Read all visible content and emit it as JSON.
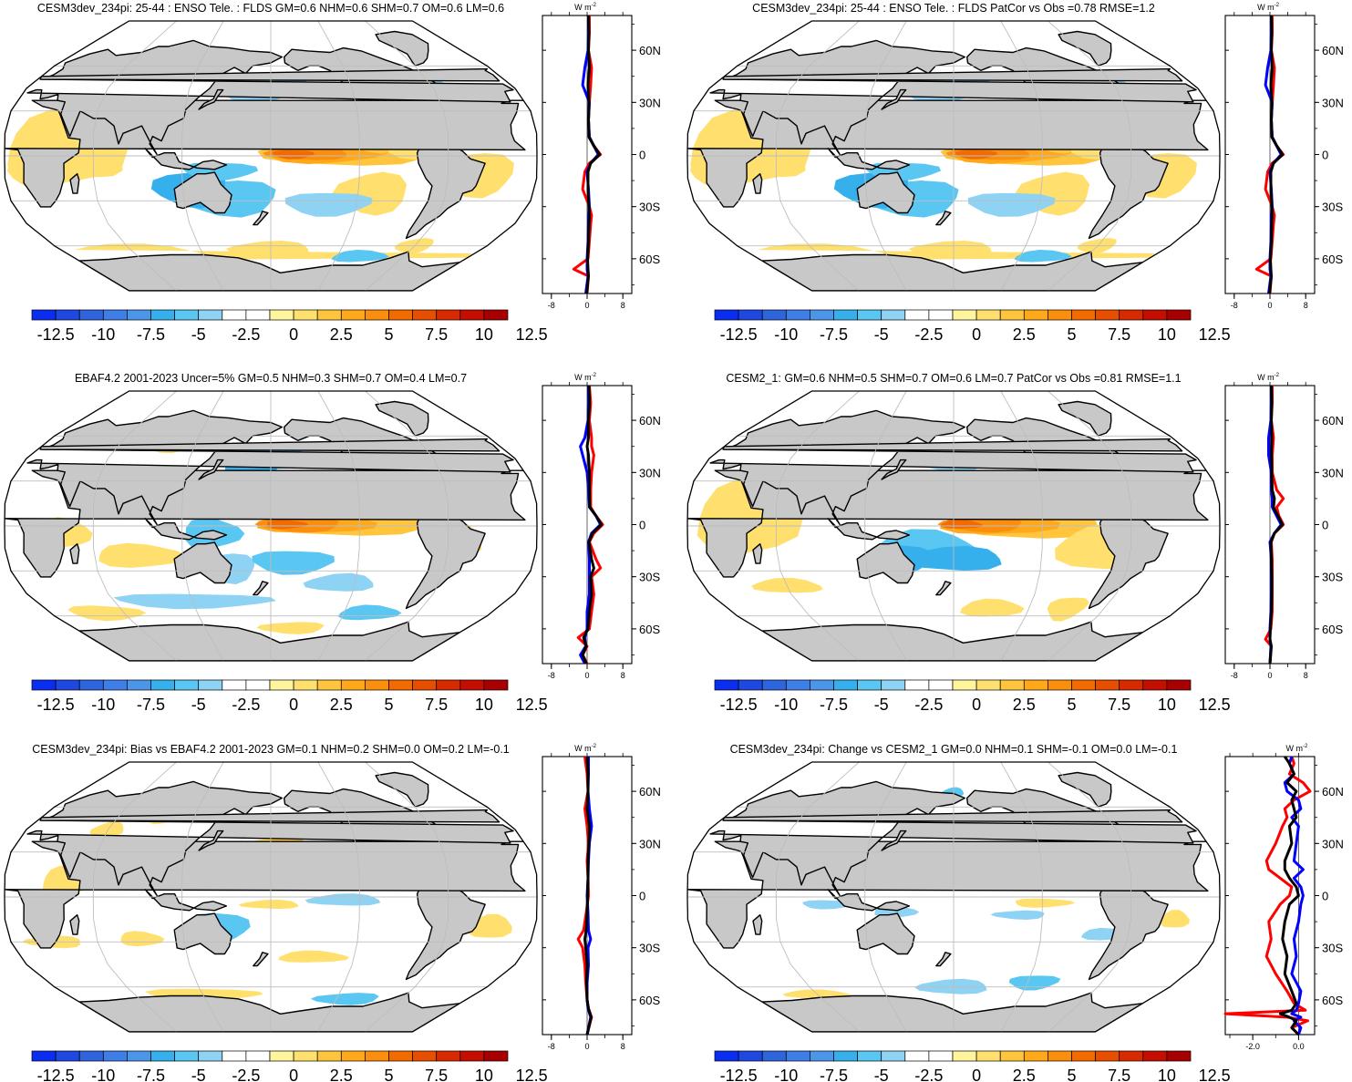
{
  "figure": {
    "variable": "FLDS",
    "units_label": "W m",
    "units_exponent": "-2",
    "colorbar": {
      "tick_labels": [
        "-12.5",
        "-10",
        "-7.5",
        "-5",
        "-2.5",
        "0",
        "2.5",
        "5",
        "7.5",
        "10",
        "12.5"
      ],
      "colors": [
        "#0a2ef0",
        "#1e48e0",
        "#2e64dc",
        "#3e7ee6",
        "#4c96ea",
        "#35b0ec",
        "#5ac6f2",
        "#8ed2f4",
        "#ffffff",
        "#ffffff",
        "#fff59c",
        "#ffe06e",
        "#ffc53c",
        "#ffa91a",
        "#fb8e0c",
        "#f36b00",
        "#e84e00",
        "#d82a00",
        "#c40f00",
        "#a80000"
      ]
    },
    "colors": {
      "red_line": "#ff0000",
      "blue_line": "#0000ff",
      "black_line": "#000000",
      "land": "#c8c8c8",
      "grid": "#bdbdbd"
    },
    "lat_labels": [
      "60N",
      "30N",
      "0",
      "30S",
      "60S"
    ]
  },
  "chart_data": [
    {
      "type": "heatmap",
      "title": "CESM3dev_234pi: 25-44 : ENSO Tele. : FLDS GM=0.6 NHM=0.6 SHM=0.7 OM=0.6 LM=0.6",
      "pattern": "model",
      "zonal_profile": {
        "x_tick_labels": [
          "-8",
          "0",
          "8"
        ],
        "xlim": [
          -10,
          10
        ],
        "ylim": [
          -80,
          80
        ],
        "lat": [
          -80,
          -70,
          -66,
          -60,
          -50,
          -40,
          -35,
          -30,
          -20,
          -10,
          -5,
          0,
          5,
          10,
          20,
          30,
          40,
          50,
          60,
          70,
          80
        ],
        "series": [
          {
            "name": "red",
            "values": [
              0.0,
              0.3,
              -3.0,
              0.2,
              0.5,
              0.8,
              1.0,
              0.5,
              -1.0,
              -0.5,
              0.5,
              3.0,
              1.5,
              0.5,
              0.3,
              0.5,
              0.8,
              1.0,
              0.3,
              0.5,
              0.5
            ]
          },
          {
            "name": "blue",
            "values": [
              -0.3,
              0.2,
              0.0,
              0.0,
              0.2,
              0.3,
              0.3,
              0.5,
              0.3,
              0.0,
              0.8,
              2.5,
              1.5,
              0.5,
              0.3,
              0.5,
              -1.0,
              -0.5,
              0.2,
              0.3,
              0.3
            ]
          },
          {
            "name": "black",
            "values": [
              -0.1,
              0.3,
              0.2,
              0.1,
              0.3,
              0.4,
              0.5,
              0.4,
              0.2,
              0.2,
              0.8,
              2.8,
              1.5,
              0.4,
              0.3,
              0.4,
              0.2,
              0.5,
              0.3,
              0.4,
              0.3
            ]
          }
        ]
      }
    },
    {
      "type": "heatmap",
      "title": "CESM3dev_234pi: 25-44 : ENSO Tele. : FLDS PatCor vs Obs =0.78 RMSE=1.2",
      "pattern": "model",
      "zonal_profile": {
        "x_tick_labels": [
          "-8",
          "0",
          "8"
        ],
        "xlim": [
          -10,
          10
        ],
        "ylim": [
          -80,
          80
        ],
        "lat": [
          -80,
          -70,
          -66,
          -60,
          -50,
          -40,
          -35,
          -30,
          -20,
          -10,
          -5,
          0,
          5,
          10,
          20,
          30,
          40,
          50,
          60,
          70,
          80
        ],
        "series": [
          {
            "name": "red",
            "values": [
              0.0,
              0.3,
              -3.0,
              0.2,
              0.5,
              0.8,
              1.0,
              0.5,
              -1.0,
              -0.5,
              0.5,
              3.0,
              1.5,
              0.5,
              0.3,
              0.5,
              0.8,
              1.0,
              0.3,
              0.5,
              0.5
            ]
          },
          {
            "name": "blue",
            "values": [
              -0.3,
              0.2,
              0.0,
              0.0,
              0.2,
              0.3,
              0.3,
              0.5,
              0.3,
              0.0,
              0.8,
              2.5,
              1.5,
              0.5,
              0.3,
              0.5,
              -1.0,
              -0.5,
              0.2,
              0.3,
              0.3
            ]
          },
          {
            "name": "black",
            "values": [
              -0.1,
              0.3,
              0.2,
              0.1,
              0.3,
              0.4,
              0.5,
              0.4,
              0.2,
              0.2,
              0.8,
              2.8,
              1.5,
              0.4,
              0.3,
              0.4,
              0.2,
              0.5,
              0.3,
              0.4,
              0.3
            ]
          }
        ]
      }
    },
    {
      "type": "heatmap",
      "title": "EBAF4.2 2001-2023 Uncer=5% GM=0.5 NHM=0.3 SHM=0.7 OM=0.4 LM=0.7",
      "pattern": "obs",
      "zonal_profile": {
        "x_tick_labels": [
          "-8",
          "0",
          "8"
        ],
        "xlim": [
          -10,
          10
        ],
        "ylim": [
          -80,
          80
        ],
        "lat": [
          -80,
          -75,
          -70,
          -65,
          -60,
          -50,
          -40,
          -30,
          -25,
          -20,
          -10,
          -5,
          0,
          5,
          10,
          20,
          30,
          40,
          45,
          50,
          60,
          70,
          80
        ],
        "series": [
          {
            "name": "red",
            "values": [
              0.0,
              -1.0,
              0.0,
              -2.0,
              0.5,
              1.0,
              1.5,
              1.0,
              3.0,
              2.0,
              0.5,
              1.5,
              3.5,
              2.0,
              0.8,
              0.8,
              1.0,
              1.5,
              1.0,
              1.0,
              0.5,
              0.8,
              0.5
            ]
          },
          {
            "name": "blue",
            "values": [
              -0.5,
              -1.5,
              -0.3,
              -0.5,
              0.0,
              0.0,
              0.5,
              0.5,
              0.5,
              0.5,
              0.3,
              1.0,
              3.0,
              2.0,
              0.5,
              0.3,
              0.0,
              -1.0,
              -1.5,
              -0.5,
              0.2,
              0.3,
              0.3
            ]
          },
          {
            "name": "black",
            "values": [
              -0.2,
              -1.0,
              -0.2,
              -0.8,
              0.2,
              0.5,
              1.0,
              0.8,
              1.5,
              1.0,
              0.4,
              1.2,
              3.2,
              2.0,
              0.6,
              0.5,
              0.5,
              0.3,
              0.0,
              0.3,
              0.3,
              0.5,
              0.4
            ]
          }
        ]
      }
    },
    {
      "type": "heatmap",
      "title": "CESM2_1: GM=0.6 NHM=0.5 SHM=0.7 OM=0.6 LM=0.7 PatCor vs Obs =0.81 RMSE=1.1",
      "pattern": "cesm2",
      "zonal_profile": {
        "x_tick_labels": [
          "-8",
          "0",
          "8"
        ],
        "xlim": [
          -10,
          10
        ],
        "ylim": [
          -80,
          80
        ],
        "lat": [
          -80,
          -70,
          -66,
          -60,
          -50,
          -40,
          -30,
          -20,
          -10,
          -5,
          0,
          5,
          10,
          15,
          20,
          30,
          40,
          50,
          60,
          70,
          80
        ],
        "series": [
          {
            "name": "red",
            "values": [
              0.0,
              0.3,
              -1.0,
              0.2,
              0.5,
              0.5,
              0.5,
              0.5,
              0.3,
              1.0,
              3.0,
              2.0,
              1.5,
              3.0,
              1.5,
              0.5,
              0.5,
              0.8,
              0.3,
              0.5,
              0.5
            ]
          },
          {
            "name": "blue",
            "values": [
              0.0,
              0.2,
              0.0,
              0.0,
              0.2,
              0.3,
              0.3,
              0.3,
              0.0,
              1.0,
              2.5,
              1.5,
              0.5,
              0.5,
              0.3,
              0.3,
              -0.3,
              -0.3,
              0.2,
              0.3,
              0.3
            ]
          },
          {
            "name": "black",
            "values": [
              0.0,
              0.3,
              0.0,
              0.1,
              0.3,
              0.4,
              0.4,
              0.3,
              0.2,
              1.0,
              2.8,
              1.8,
              0.8,
              1.0,
              0.5,
              0.4,
              0.3,
              0.4,
              0.3,
              0.4,
              0.3
            ]
          }
        ]
      }
    },
    {
      "type": "heatmap",
      "title": "CESM3dev_234pi: Bias vs EBAF4.2 2001-2023 GM=0.1 NHM=0.2 SHM=0.0 OM=0.2 LM=-0.1",
      "pattern": "bias",
      "zonal_profile": {
        "x_tick_labels": [
          "-8",
          "0",
          "8"
        ],
        "xlim": [
          -10,
          10
        ],
        "ylim": [
          -80,
          80
        ],
        "lat": [
          -80,
          -70,
          -65,
          -60,
          -50,
          -40,
          -30,
          -25,
          -20,
          -10,
          0,
          10,
          20,
          30,
          40,
          50,
          60,
          70,
          80
        ],
        "series": [
          {
            "name": "red",
            "values": [
              0.0,
              1.0,
              0.3,
              0.0,
              -0.3,
              -0.5,
              -1.0,
              -2.0,
              -0.8,
              -0.2,
              0.3,
              0.2,
              0.0,
              0.3,
              0.0,
              -0.5,
              0.2,
              0.0,
              -0.5
            ]
          },
          {
            "name": "blue",
            "values": [
              0.0,
              0.8,
              0.2,
              0.0,
              0.0,
              0.3,
              0.2,
              0.8,
              0.3,
              0.2,
              0.0,
              0.2,
              0.3,
              0.5,
              1.0,
              0.5,
              0.2,
              0.3,
              0.3
            ]
          },
          {
            "name": "black",
            "values": [
              0.0,
              0.9,
              0.3,
              0.0,
              -0.1,
              0.0,
              -0.3,
              -0.5,
              -0.2,
              0.0,
              0.1,
              0.2,
              0.2,
              0.4,
              0.5,
              0.0,
              0.2,
              0.2,
              0.0
            ]
          }
        ]
      }
    },
    {
      "type": "heatmap",
      "title": "CESM3dev_234pi: Change vs CESM2_1 GM=0.0 NHM=0.1 SHM=-0.1 OM=0.0 LM=-0.1",
      "pattern": "change",
      "zonal_profile": {
        "x_tick_labels": [
          "-2.0",
          "0.0"
        ],
        "xlim": [
          -3.2,
          0.7
        ],
        "ylim": [
          -80,
          80
        ],
        "lat": [
          -80,
          -76,
          -72,
          -70,
          -68,
          -66,
          -62,
          -55,
          -45,
          -35,
          -25,
          -15,
          -5,
          0,
          5,
          10,
          15,
          20,
          30,
          40,
          45,
          50,
          55,
          60,
          65,
          70,
          76,
          80
        ],
        "series": [
          {
            "name": "red",
            "values": [
              0.0,
              -0.3,
              0.4,
              -0.5,
              -3.2,
              0.3,
              -0.2,
              -0.5,
              -1.0,
              -1.4,
              -1.2,
              -1.3,
              -0.8,
              -0.4,
              -0.3,
              -0.8,
              -1.3,
              -1.4,
              -1.0,
              -0.7,
              -0.5,
              -0.6,
              -0.2,
              0.5,
              0.2,
              -0.4,
              -0.2,
              -0.3
            ]
          },
          {
            "name": "blue",
            "values": [
              0.0,
              0.1,
              -0.2,
              0.1,
              -0.3,
              -0.1,
              0.0,
              0.1,
              -0.3,
              -0.1,
              -0.2,
              0.0,
              0.1,
              0.2,
              0.1,
              -0.2,
              0.2,
              -0.2,
              -0.1,
              0.0,
              -0.3,
              0.1,
              0.0,
              -0.5,
              -0.6,
              -0.2,
              -0.4,
              -0.3
            ]
          },
          {
            "name": "black",
            "values": [
              0.0,
              -0.3,
              -0.1,
              -0.4,
              -0.8,
              -0.3,
              -0.1,
              -0.3,
              -0.6,
              -0.5,
              -0.7,
              -0.6,
              -0.4,
              0.0,
              -0.1,
              -0.4,
              -0.6,
              -0.6,
              -0.3,
              -0.4,
              -0.1,
              -0.2,
              -0.3,
              -0.1,
              -0.5,
              -0.2,
              -0.4,
              -0.6
            ]
          }
        ]
      }
    }
  ]
}
